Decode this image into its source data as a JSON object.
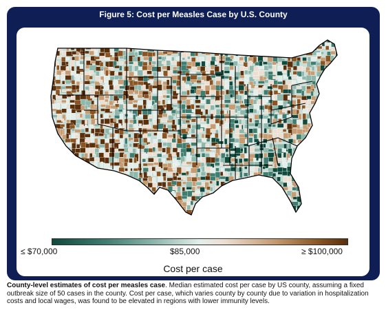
{
  "figure": {
    "title": "Figure 5: Cost per Measles Case by U.S. County"
  },
  "colorbar": {
    "min_label": "≤ $70,000",
    "mid_label": "$85,000",
    "max_label": "≥ $100,000",
    "label": "Cost per case",
    "colors": [
      "#0f4a3c",
      "#8fb8ad",
      "#e3eeea",
      "#c69c72",
      "#5a2f0b"
    ]
  },
  "map": {
    "state_border_color": "#000000",
    "county_border_color": "#ffffff"
  },
  "caption": {
    "bold": "County-level estimates of cost per measles case",
    "text": ". Median estimated cost per case by US county, assuming a fixed outbreak size of 50 cases in the county. Cost per case, which varies county by county due to variation in hospitalization costs and local wages, was found to be elevated in regions with lower immunity levels."
  }
}
